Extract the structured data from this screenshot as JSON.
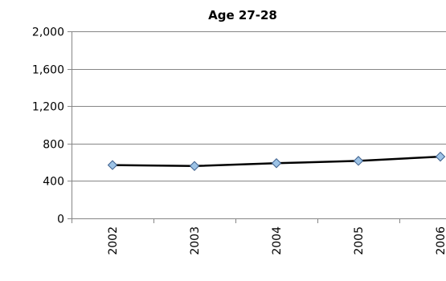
{
  "chart_data": {
    "type": "line",
    "title": "Age 27-28",
    "xlabel": "",
    "ylabel": "",
    "categories": [
      "2002",
      "2003",
      "2004",
      "2005",
      "2006"
    ],
    "series": [
      {
        "values": [
          570,
          560,
          590,
          615,
          660
        ]
      }
    ],
    "ylim": [
      0,
      2000
    ],
    "yticks": [
      0,
      400,
      800,
      1200,
      1600,
      2000
    ],
    "ytick_labels": [
      "0",
      "400",
      "800",
      "1,200",
      "1,600",
      "2,000"
    ],
    "grid": "horizontal",
    "legend": "none",
    "colors": {
      "line": "#000000",
      "marker_fill": "#9dc3e6",
      "marker_stroke": "#3d5f8c",
      "grid": "#868686",
      "axis": "#868686"
    }
  }
}
